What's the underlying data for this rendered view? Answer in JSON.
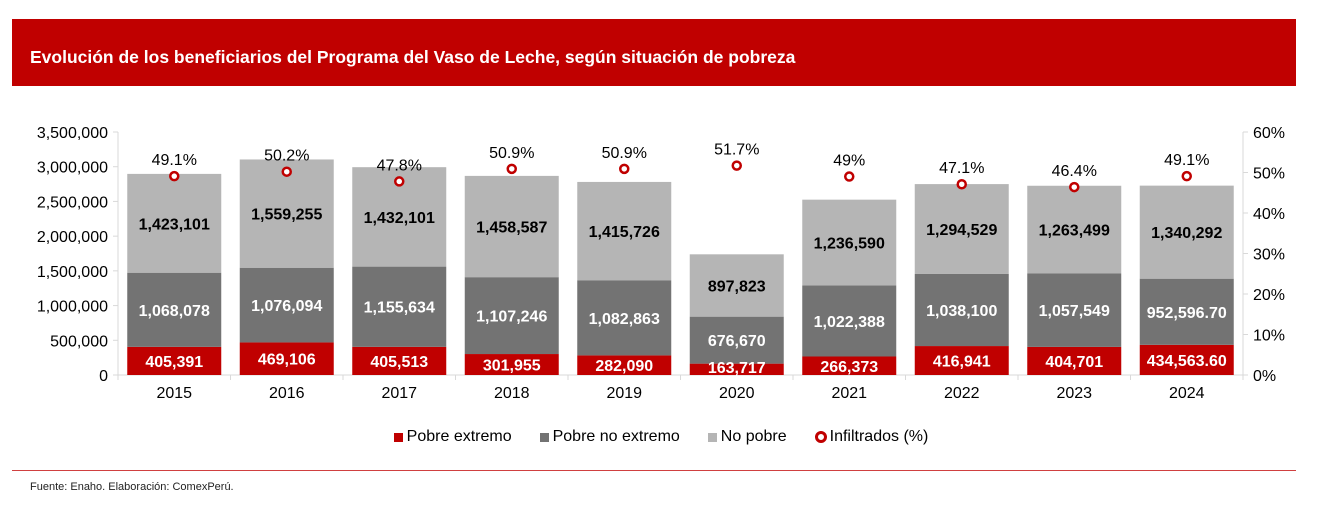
{
  "header": {
    "title": "Evolución de los beneficiarios del Programa del Vaso de Leche, según situación de pobreza"
  },
  "colors": {
    "brand_red": "#c00000",
    "pobre_extremo": "#c00000",
    "pobre_no_extremo": "#737373",
    "no_pobre": "#b5b5b5",
    "infiltrados": "#c00000",
    "axis": "#d9d9d9"
  },
  "chart_data": {
    "type": "bar",
    "stacked": true,
    "title": "Evolución de los beneficiarios del Programa del Vaso de Leche, según situación de pobreza",
    "xlabel": "",
    "ylabel": "",
    "categories": [
      "2015",
      "2016",
      "2017",
      "2018",
      "2019",
      "2020",
      "2021",
      "2022",
      "2023",
      "2024"
    ],
    "series": [
      {
        "name": "Pobre extremo",
        "type": "bar",
        "axis": "left",
        "values": [
          405391,
          469106,
          405513,
          301955,
          282090,
          163717,
          266373,
          416941,
          404701,
          434563.6
        ],
        "labels": [
          "405,391",
          "469,106",
          "405,513",
          "301,955",
          "282,090",
          "163,717",
          "266,373",
          "416,941",
          "404,701",
          "434,563.60"
        ]
      },
      {
        "name": "Pobre no extremo",
        "type": "bar",
        "axis": "left",
        "values": [
          1068078,
          1076094,
          1155634,
          1107246,
          1082863,
          676670,
          1022388,
          1038100,
          1057549,
          952596.7
        ],
        "labels": [
          "1,068,078",
          "1,076,094",
          "1,155,634",
          "1,107,246",
          "1,082,863",
          "676,670",
          "1,022,388",
          "1,038,100",
          "1,057,549",
          "952,596.70"
        ]
      },
      {
        "name": "No pobre",
        "type": "bar",
        "axis": "left",
        "values": [
          1423101,
          1559255,
          1432101,
          1458587,
          1415726,
          897823,
          1236590,
          1294529,
          1263499,
          1340292
        ],
        "labels": [
          "1,423,101",
          "1,559,255",
          "1,432,101",
          "1,458,587",
          "1,415,726",
          "897,823",
          "1,236,590",
          "1,294,529",
          "1,263,499",
          "1,340,292"
        ]
      },
      {
        "name": "Infiltrados (%)",
        "type": "scatter",
        "axis": "right",
        "values": [
          49.1,
          50.2,
          47.8,
          50.9,
          50.9,
          51.7,
          49,
          47.1,
          46.4,
          49.1
        ],
        "labels": [
          "49.1%",
          "50.2%",
          "47.8%",
          "50.9%",
          "50.9%",
          "51.7%",
          "49%",
          "47.1%",
          "46.4%",
          "49.1%"
        ]
      }
    ],
    "y_left": {
      "ylim": [
        0,
        3500000
      ],
      "ticks": [
        0,
        500000,
        1000000,
        1500000,
        2000000,
        2500000,
        3000000,
        3500000
      ],
      "tick_labels": [
        "0",
        "500,000",
        "1,000,000",
        "1,500,000",
        "2,000,000",
        "2,500,000",
        "3,000,000",
        "3,500,000"
      ]
    },
    "y_right": {
      "ylim": [
        0,
        60
      ],
      "ticks": [
        0,
        10,
        20,
        30,
        40,
        50,
        60
      ],
      "tick_labels": [
        "0%",
        "10%",
        "20%",
        "30%",
        "40%",
        "50%",
        "60%"
      ]
    },
    "grid": false,
    "legend": {
      "position": "bottom",
      "entries": [
        "Pobre extremo",
        "Pobre no extremo",
        "No pobre",
        "Infiltrados (%)"
      ]
    }
  },
  "footer": {
    "source": "Fuente: Enaho. Elaboración: ComexPerú."
  }
}
